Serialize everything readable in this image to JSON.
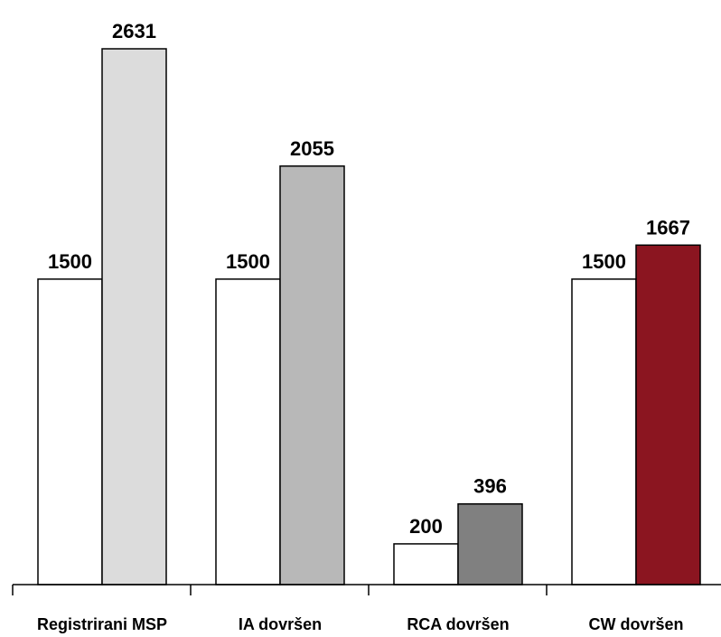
{
  "chart_data": {
    "type": "bar",
    "categories": [
      "Registrirani MSP",
      "IA dovršen",
      "RCA dovršen",
      "CW dovršen"
    ],
    "series": [
      {
        "values": [
          1500,
          1500,
          200,
          1500
        ]
      },
      {
        "values": [
          2631,
          2055,
          396,
          1667
        ]
      }
    ],
    "colors": {
      "target": [
        "#ffffff",
        "#ffffff",
        "#ffffff",
        "#ffffff"
      ],
      "actual": [
        "#dcdcdc",
        "#b8b8b8",
        "#808080",
        "#8b1520"
      ]
    },
    "ylim": [
      0,
      2631
    ],
    "grid": false,
    "legend": "none",
    "title": "",
    "xlabel": "",
    "ylabel": ""
  }
}
